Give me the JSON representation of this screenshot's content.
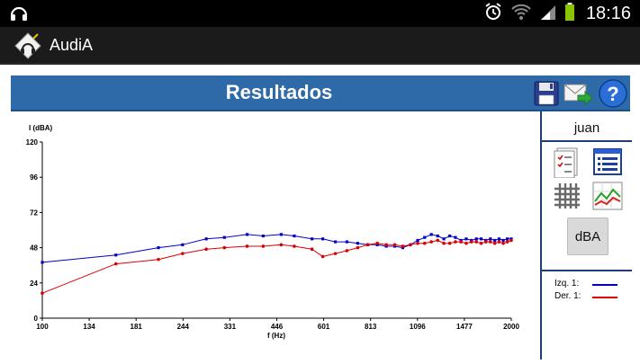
{
  "statusbar": {
    "time": "18:16"
  },
  "app": {
    "title": "AudiA"
  },
  "results": {
    "title": "Resultados"
  },
  "side": {
    "user": "juan",
    "dba_label": "dBA"
  },
  "legend": [
    {
      "label": "Izq. 1:",
      "color": "#0000cc"
    },
    {
      "label": "Der. 1:",
      "color": "#dd0000"
    }
  ],
  "colors": {
    "header": "#2f6aa8",
    "left_series": "#0000cc",
    "right_series": "#dd0000"
  },
  "chart_data": {
    "type": "line",
    "ylabel": "I (dBA)",
    "xlabel": "f (Hz)",
    "ylim": [
      0,
      120
    ],
    "yticks": [
      0,
      24,
      48,
      72,
      96,
      120
    ],
    "xticks": [
      "100",
      "134",
      "181",
      "244",
      "331",
      "446",
      "601",
      "813",
      "1096",
      "1477",
      "2000"
    ],
    "x_scale": "log",
    "series": [
      {
        "name": "Izq. 1:",
        "color": "#0000cc",
        "x": [
          100,
          160,
          210,
          245,
          285,
          320,
          370,
          410,
          460,
          500,
          560,
          600,
          650,
          700,
          750,
          800,
          850,
          900,
          950,
          1000,
          1050,
          1100,
          1150,
          1200,
          1250,
          1300,
          1350,
          1400,
          1450,
          1500,
          1550,
          1600,
          1650,
          1700,
          1750,
          1800,
          1850,
          1900,
          1950,
          2000
        ],
        "y": [
          38,
          43,
          48,
          50,
          54,
          55,
          57,
          56,
          57,
          56,
          54,
          54,
          52,
          52,
          51,
          50,
          50,
          49,
          49,
          48,
          50,
          53,
          55,
          57,
          56,
          54,
          56,
          55,
          53,
          54,
          53,
          54,
          54,
          53,
          54,
          53,
          54,
          53,
          54,
          54
        ]
      },
      {
        "name": "Der. 1:",
        "color": "#dd0000",
        "x": [
          100,
          160,
          210,
          245,
          285,
          320,
          370,
          410,
          460,
          500,
          560,
          600,
          650,
          700,
          750,
          800,
          850,
          900,
          950,
          1000,
          1050,
          1100,
          1150,
          1200,
          1250,
          1300,
          1350,
          1400,
          1450,
          1500,
          1550,
          1600,
          1650,
          1700,
          1750,
          1800,
          1850,
          1900,
          1950,
          2000
        ],
        "y": [
          17,
          37,
          40,
          44,
          47,
          48,
          49,
          49,
          50,
          49,
          47,
          42,
          44,
          46,
          48,
          50,
          51,
          50,
          50,
          49,
          50,
          51,
          51,
          52,
          53,
          51,
          51,
          52,
          52,
          51,
          52,
          52,
          51,
          52,
          52,
          51,
          52,
          51,
          52,
          53
        ]
      }
    ]
  }
}
